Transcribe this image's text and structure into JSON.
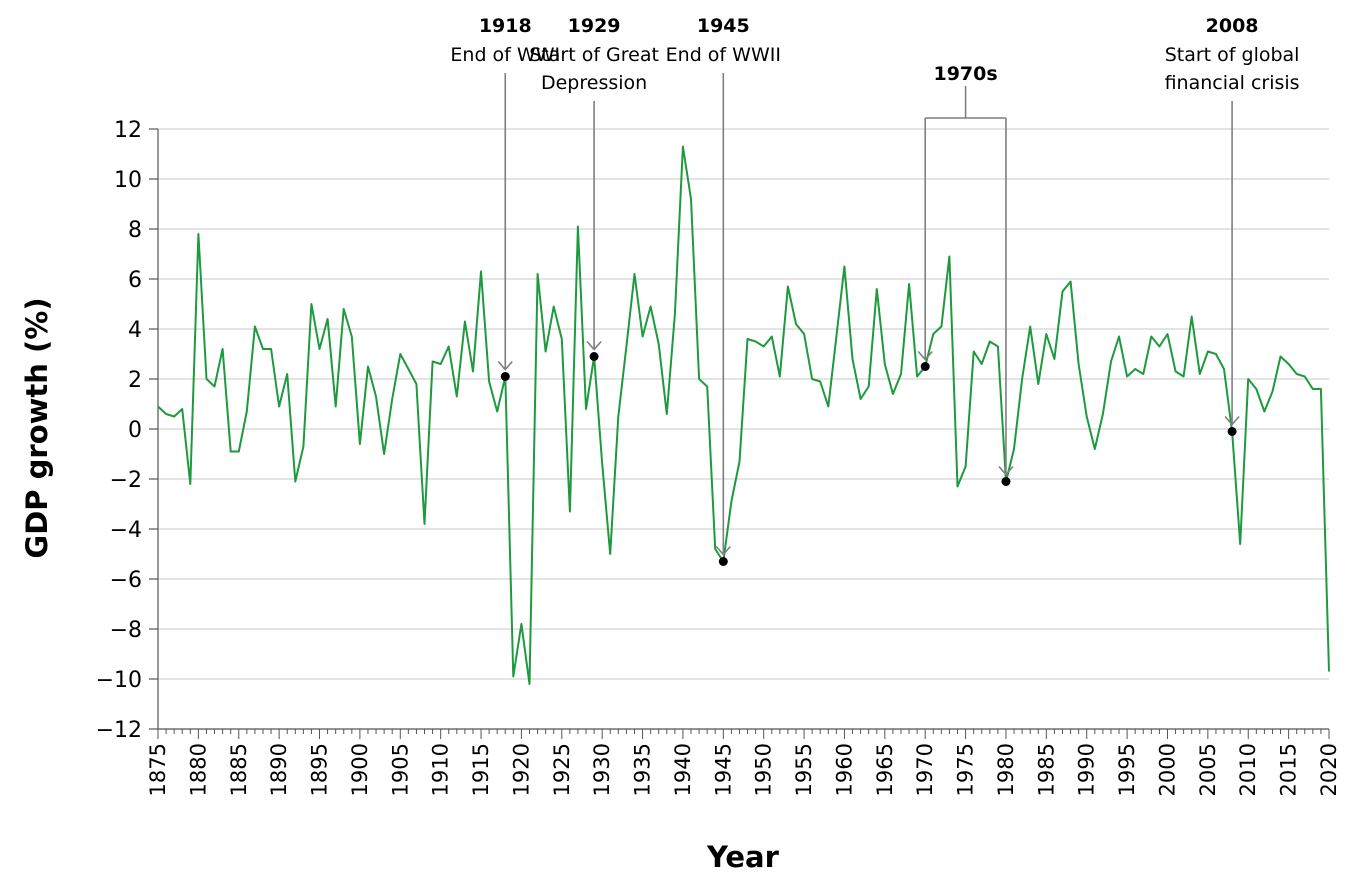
{
  "chart_data": {
    "type": "line",
    "xlabel": "Year",
    "ylabel": "GDP growth (%)",
    "xlim": [
      1875,
      2020
    ],
    "ylim": [
      -12,
      12
    ],
    "x_ticks": [
      1875,
      1880,
      1885,
      1890,
      1895,
      1900,
      1905,
      1910,
      1915,
      1920,
      1925,
      1930,
      1935,
      1940,
      1945,
      1950,
      1955,
      1960,
      1965,
      1970,
      1975,
      1980,
      1985,
      1990,
      1995,
      2000,
      2005,
      2010,
      2015,
      2020
    ],
    "y_ticks": [
      12,
      10,
      8,
      6,
      4,
      2,
      0,
      -2,
      -4,
      -6,
      -8,
      -10,
      -12
    ],
    "y_tick_labels": [
      "12",
      "10",
      "8",
      "6",
      "4",
      "2",
      "0",
      "−2",
      "−4",
      "−6",
      "−8",
      "−10",
      "−12"
    ],
    "grid": "horizontal",
    "line_color": "#1e9a3e",
    "series": [
      {
        "x": [
          1875,
          1876,
          1877,
          1878,
          1879,
          1880,
          1881,
          1882,
          1883,
          1884,
          1885,
          1886,
          1887,
          1888,
          1889,
          1890,
          1891,
          1892,
          1893,
          1894,
          1895,
          1896,
          1897,
          1898,
          1899,
          1900,
          1901,
          1902,
          1903,
          1904,
          1905,
          1906,
          1907,
          1908,
          1909,
          1910,
          1911,
          1912,
          1913,
          1914,
          1915,
          1916,
          1917,
          1918,
          1919,
          1920,
          1921,
          1922,
          1923,
          1924,
          1925,
          1926,
          1927,
          1928,
          1929,
          1930,
          1931,
          1932,
          1933,
          1934,
          1935,
          1936,
          1937,
          1938,
          1939,
          1940,
          1941,
          1942,
          1943,
          1944,
          1945,
          1946,
          1947,
          1948,
          1949,
          1950,
          1951,
          1952,
          1953,
          1954,
          1955,
          1956,
          1957,
          1958,
          1959,
          1960,
          1961,
          1962,
          1963,
          1964,
          1965,
          1966,
          1967,
          1968,
          1969,
          1970,
          1971,
          1972,
          1973,
          1974,
          1975,
          1976,
          1977,
          1978,
          1979,
          1980,
          1981,
          1982,
          1983,
          1984,
          1985,
          1986,
          1987,
          1988,
          1989,
          1990,
          1991,
          1992,
          1993,
          1994,
          1995,
          1996,
          1997,
          1998,
          1999,
          2000,
          2001,
          2002,
          2003,
          2004,
          2005,
          2006,
          2007,
          2008,
          2009,
          2010,
          2011,
          2012,
          2013,
          2014,
          2015,
          2016,
          2017,
          2018,
          2019,
          2020
        ],
        "values": [
          0.9,
          0.6,
          0.5,
          0.8,
          -2.2,
          7.8,
          2.0,
          1.7,
          3.2,
          -0.9,
          -0.9,
          0.7,
          4.1,
          3.2,
          3.2,
          0.9,
          2.2,
          -2.1,
          -0.7,
          5.0,
          3.2,
          4.4,
          0.9,
          4.8,
          3.7,
          -0.6,
          2.5,
          1.3,
          -1.0,
          1.2,
          3.0,
          2.4,
          1.8,
          -3.8,
          2.7,
          2.6,
          3.3,
          1.3,
          4.3,
          2.3,
          6.3,
          1.9,
          0.7,
          2.1,
          -9.9,
          -7.8,
          -10.2,
          6.2,
          3.1,
          4.9,
          3.6,
          -3.3,
          8.1,
          0.8,
          2.9,
          -1.4,
          -5.0,
          0.5,
          3.3,
          6.2,
          3.7,
          4.9,
          3.4,
          0.6,
          4.6,
          11.3,
          9.2,
          2.0,
          1.7,
          -4.8,
          -5.3,
          -2.9,
          -1.3,
          3.6,
          3.5,
          3.3,
          3.7,
          2.1,
          5.7,
          4.2,
          3.8,
          2.0,
          1.9,
          0.9,
          3.7,
          6.5,
          2.8,
          1.2,
          1.7,
          5.6,
          2.6,
          1.4,
          2.2,
          5.8,
          2.1,
          2.5,
          3.8,
          4.1,
          6.9,
          -2.3,
          -1.5,
          3.1,
          2.6,
          3.5,
          3.3,
          -2.1,
          -0.8,
          2.0,
          4.1,
          1.8,
          3.8,
          2.8,
          5.5,
          5.9,
          2.6,
          0.5,
          -0.8,
          0.6,
          2.7,
          3.7,
          2.1,
          2.4,
          2.2,
          3.7,
          3.3,
          3.8,
          2.3,
          2.1,
          4.5,
          2.2,
          3.1,
          3.0,
          2.4,
          -0.1,
          -4.6,
          2.0,
          1.6,
          0.7,
          1.5,
          2.9,
          2.6,
          2.2,
          2.1,
          1.6,
          1.6,
          -9.7
        ]
      }
    ],
    "annotations": [
      {
        "year_label": "1918",
        "lines": [
          "End of WWI"
        ],
        "x": 1918,
        "y": 2.1
      },
      {
        "year_label": "1929",
        "lines": [
          "Start of Great",
          "Depression"
        ],
        "x": 1929,
        "y": 2.9
      },
      {
        "year_label": "1945",
        "lines": [
          "End of WWII"
        ],
        "x": 1945,
        "y": -5.3
      },
      {
        "year_label": "1970s",
        "lines": [],
        "x_range": [
          1970,
          1980
        ],
        "points": [
          {
            "x": 1970,
            "y": 2.5
          },
          {
            "x": 1980,
            "y": -2.1
          }
        ]
      },
      {
        "year_label": "2008",
        "lines": [
          "Start of global",
          "financial crisis"
        ],
        "x": 2008,
        "y": -0.1
      }
    ]
  }
}
